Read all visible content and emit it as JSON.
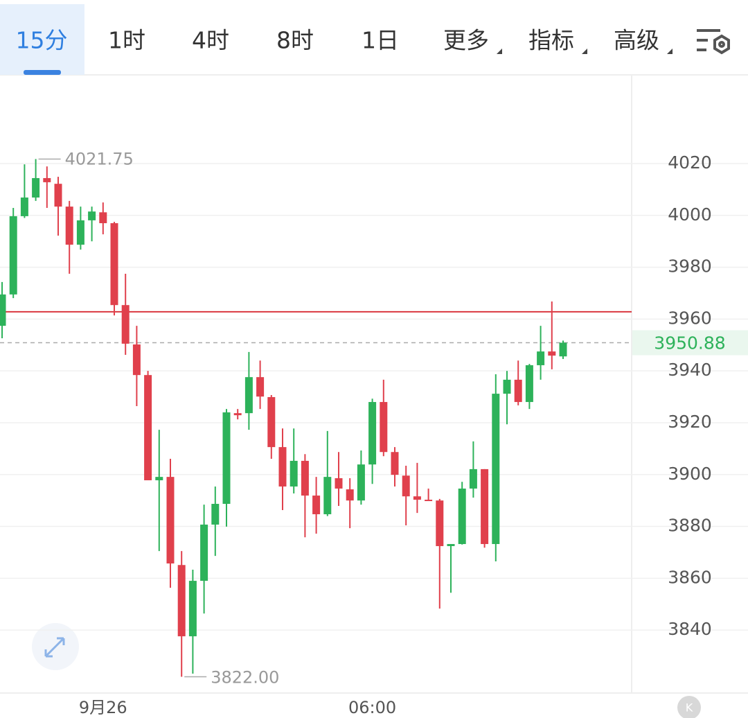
{
  "tabs": {
    "items": [
      "15分",
      "1时",
      "4时",
      "8时",
      "1日",
      "更多",
      "指标",
      "高级"
    ],
    "active": 0
  },
  "chart_data": {
    "type": "candlestick",
    "categories": [
      null,
      null,
      null,
      null,
      null,
      null,
      null,
      null,
      null,
      "9月26",
      null,
      null,
      null,
      null,
      null,
      null,
      null,
      null,
      null,
      null,
      null,
      null,
      null,
      null,
      null,
      null,
      null,
      null,
      null,
      null,
      null,
      null,
      null,
      "06:00",
      null,
      null,
      null,
      null,
      null,
      null,
      null,
      null,
      null,
      null,
      null,
      null,
      null,
      null,
      null,
      null,
      null
    ],
    "open": [
      3957.4,
      3969.5,
      3999.7,
      4006.9,
      4014.4,
      4012.2,
      4003.4,
      3988.7,
      3998.1,
      4001.2,
      3997.0,
      3965.4,
      3950.2,
      3938.4,
      3897.8,
      3899.1,
      3865.1,
      3837.6,
      3859.0,
      3880.7,
      3888.7,
      3923.7,
      3923.7,
      3937.6,
      3929.9,
      3910.6,
      3895.4,
      3905.3,
      3891.9,
      3884.7,
      3898.6,
      3894.3,
      3890.0,
      3903.9,
      3928.0,
      3908.7,
      3899.6,
      3891.6,
      3890.3,
      3890.0,
      3872.4,
      3873.2,
      3894.6,
      3902.1,
      3873.2,
      3931.2,
      3936.6,
      3928.0,
      3942.2,
      3947.5,
      3945.6
    ],
    "high": [
      3974.3,
      4002.9,
      4019.7,
      4021.75,
      4018.9,
      4014.9,
      4005.6,
      4003.4,
      4003.4,
      4005.0,
      3997.5,
      3977.5,
      3957.4,
      3940.0,
      3917.3,
      3906.1,
      3870.5,
      3863.3,
      3888.4,
      3895.4,
      3925.3,
      3925.3,
      3947.3,
      3944.0,
      3930.7,
      3917.8,
      3917.8,
      3907.9,
      3899.1,
      3916.8,
      3908.7,
      3898.6,
      3909.3,
      3929.3,
      3936.6,
      3910.6,
      3903.4,
      3904.5,
      3894.6,
      3890.6,
      3873.2,
      3897.2,
      3912.8,
      3902.1,
      3938.7,
      3940.0,
      3944.0,
      3942.7,
      3957.4,
      3966.8,
      3951.7
    ],
    "low": [
      3952.6,
      3968.1,
      3999.0,
      4005.6,
      4002.9,
      3992.2,
      3977.5,
      3986.8,
      3990.0,
      3992.7,
      3961.4,
      3946.2,
      3926.4,
      3897.8,
      3870.5,
      3856.3,
      3822.0,
      3823.2,
      3846.4,
      3868.6,
      3879.9,
      3921.3,
      3917.3,
      3925.3,
      3906.1,
      3886.3,
      3892.7,
      3875.8,
      3877.2,
      3884.0,
      3887.9,
      3879.3,
      3888.4,
      3896.4,
      3907.1,
      3895.4,
      3880.4,
      3885.2,
      3889.8,
      3848.3,
      3854.4,
      3873.0,
      3891.1,
      3871.8,
      3866.5,
      3919.4,
      3926.7,
      3925.3,
      3936.6,
      3940.6,
      3944.6
    ],
    "close": [
      3969.5,
      3999.7,
      4006.9,
      4014.4,
      4012.8,
      4003.4,
      3988.7,
      3998.1,
      4001.5,
      3997.0,
      3965.4,
      3950.5,
      3938.4,
      3897.8,
      3899.1,
      3865.7,
      3837.6,
      3859.0,
      3880.7,
      3888.7,
      3924.0,
      3922.9,
      3937.6,
      3930.1,
      3910.6,
      3895.4,
      3905.3,
      3891.9,
      3884.7,
      3899.1,
      3894.6,
      3890.0,
      3903.9,
      3928.0,
      3908.7,
      3899.9,
      3891.6,
      3890.3,
      3890.0,
      3872.4,
      3873.2,
      3894.6,
      3902.1,
      3873.2,
      3931.2,
      3936.6,
      3928.0,
      3942.2,
      3947.5,
      3945.9,
      3950.88
    ],
    "up_color": "#2db25a",
    "down_color": "#e0404c",
    "ylim": [
      3815.7,
      4053.7
    ],
    "yticks": [
      3840,
      3860,
      3880,
      3900,
      3920,
      3940,
      3960,
      3980,
      4000,
      4020
    ],
    "grid": true,
    "high_marker": {
      "value": 4021.75,
      "label": "4021.75"
    },
    "low_marker": {
      "value": 3822,
      "label": "3822.00"
    },
    "last_price": 3950.88,
    "reference_line": {
      "value": 3962.8,
      "color": "#d9363e"
    }
  }
}
